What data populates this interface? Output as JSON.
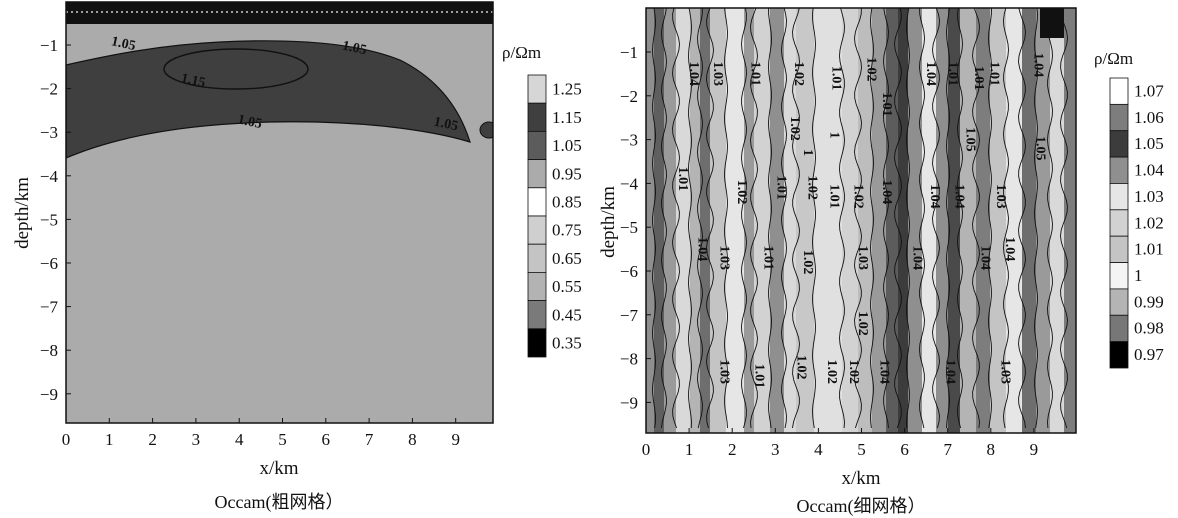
{
  "chart_data": [
    {
      "type": "heatmap",
      "caption": "Occam(粗网格）",
      "xlabel": "x/km",
      "ylabel": "depth/km",
      "xticks": [
        "0",
        "1",
        "2",
        "3",
        "4",
        "5",
        "6",
        "7",
        "8",
        "9"
      ],
      "yticks": [
        "−1",
        "−2",
        "−3",
        "−4",
        "−5",
        "−6",
        "−7",
        "−8",
        "−9"
      ],
      "xlim": [
        0,
        9.8
      ],
      "ylim": [
        -9.7,
        0
      ],
      "colorbar": {
        "title": "ρ/Ωm",
        "levels": [
          "1.25",
          "1.15",
          "1.05",
          "0.95",
          "0.85",
          "0.75",
          "0.65",
          "0.55",
          "0.45",
          "0.35"
        ],
        "colors": [
          "#d6d6d6",
          "#3f3f3f",
          "#5c5c5c",
          "#ababab",
          "#ffffff",
          "#cfcfcf",
          "#c4c4c4",
          "#b3b3b3",
          "#7a7a7a",
          "#000000"
        ]
      },
      "contour_labels": [
        {
          "text": "1.05",
          "x": 1.3,
          "y": -1.05
        },
        {
          "text": "1.15",
          "x": 2.9,
          "y": -1.9
        },
        {
          "text": "1.05",
          "x": 6.6,
          "y": -1.15
        },
        {
          "text": "1.05",
          "x": 4.2,
          "y": -2.85
        },
        {
          "text": "1.05",
          "x": 8.7,
          "y": -2.9
        }
      ]
    },
    {
      "type": "heatmap",
      "caption": "Occam(细网格）",
      "xlabel": "x/km",
      "ylabel": "depth/km",
      "xticks": [
        "0",
        "1",
        "2",
        "3",
        "4",
        "5",
        "6",
        "7",
        "8",
        "9"
      ],
      "yticks": [
        "−1",
        "−2",
        "−3",
        "−4",
        "−5",
        "−6",
        "−7",
        "−8",
        "−9"
      ],
      "xlim": [
        0,
        9.8
      ],
      "ylim": [
        -9.7,
        0
      ],
      "colorbar": {
        "title": "ρ/Ωm",
        "levels": [
          "1.07",
          "1.06",
          "1.05",
          "1.04",
          "1.03",
          "1.02",
          "1.01",
          "1",
          "0.99",
          "0.98",
          "0.97"
        ],
        "colors": [
          "#ffffff",
          "#7d7d7d",
          "#3c3c3c",
          "#8f8f8f",
          "#e6e6e6",
          "#d2d2d2",
          "#c4c4c4",
          "#f4f4f4",
          "#b4b4b4",
          "#777777",
          "#000000"
        ]
      },
      "contour_labels": [
        {
          "text": "1.04",
          "x": 1.0,
          "y": -1.5
        },
        {
          "text": "1.03",
          "x": 1.55,
          "y": -1.5
        },
        {
          "text": "1.01",
          "x": 2.4,
          "y": -1.5
        },
        {
          "text": "1.02",
          "x": 3.4,
          "y": -1.5
        },
        {
          "text": "1.01",
          "x": 4.25,
          "y": -1.6
        },
        {
          "text": "1.02",
          "x": 5.05,
          "y": -1.4
        },
        {
          "text": "1.01",
          "x": 5.4,
          "y": -2.2
        },
        {
          "text": "1.04",
          "x": 6.4,
          "y": -1.5
        },
        {
          "text": "1.01",
          "x": 6.9,
          "y": -1.5
        },
        {
          "text": "1.01",
          "x": 7.5,
          "y": -1.6
        },
        {
          "text": "1.01",
          "x": 7.85,
          "y": -1.5
        },
        {
          "text": "1.04",
          "x": 8.85,
          "y": -1.3
        },
        {
          "text": "1.02",
          "x": 3.3,
          "y": -2.75
        },
        {
          "text": "1",
          "x": 4.2,
          "y": -2.9
        },
        {
          "text": "1",
          "x": 3.6,
          "y": -3.3
        },
        {
          "text": "1.05",
          "x": 7.3,
          "y": -3.0
        },
        {
          "text": "1.05",
          "x": 8.9,
          "y": -3.2
        },
        {
          "text": "1.01",
          "x": 0.75,
          "y": -3.9
        },
        {
          "text": "1.02",
          "x": 2.1,
          "y": -4.2
        },
        {
          "text": "1.01",
          "x": 3.0,
          "y": -4.1
        },
        {
          "text": "1.02",
          "x": 3.7,
          "y": -4.1
        },
        {
          "text": "1.01",
          "x": 4.2,
          "y": -4.3
        },
        {
          "text": "1.02",
          "x": 4.75,
          "y": -4.3
        },
        {
          "text": "1.04",
          "x": 5.4,
          "y": -4.2
        },
        {
          "text": "1.04",
          "x": 6.5,
          "y": -4.3
        },
        {
          "text": "1.04",
          "x": 7.05,
          "y": -4.3
        },
        {
          "text": "1.03",
          "x": 8.0,
          "y": -4.3
        },
        {
          "text": "1.04",
          "x": 1.2,
          "y": -5.5
        },
        {
          "text": "1.03",
          "x": 1.7,
          "y": -5.7
        },
        {
          "text": "1.01",
          "x": 2.7,
          "y": -5.7
        },
        {
          "text": "1.02",
          "x": 3.6,
          "y": -5.8
        },
        {
          "text": "1.03",
          "x": 4.85,
          "y": -5.7
        },
        {
          "text": "1.04",
          "x": 6.1,
          "y": -5.7
        },
        {
          "text": "1.04",
          "x": 7.65,
          "y": -5.7
        },
        {
          "text": "1.04",
          "x": 8.2,
          "y": -5.5
        },
        {
          "text": "1.02",
          "x": 4.85,
          "y": -7.2
        },
        {
          "text": "1.03",
          "x": 1.7,
          "y": -8.3
        },
        {
          "text": "1.01",
          "x": 2.5,
          "y": -8.4
        },
        {
          "text": "1.02",
          "x": 3.45,
          "y": -8.2
        },
        {
          "text": "1.02",
          "x": 4.15,
          "y": -8.3
        },
        {
          "text": "1.02",
          "x": 4.65,
          "y": -8.3
        },
        {
          "text": "1.04",
          "x": 5.35,
          "y": -8.3
        },
        {
          "text": "1.04",
          "x": 6.85,
          "y": -8.3
        },
        {
          "text": "1.03",
          "x": 8.1,
          "y": -8.3
        }
      ]
    }
  ]
}
